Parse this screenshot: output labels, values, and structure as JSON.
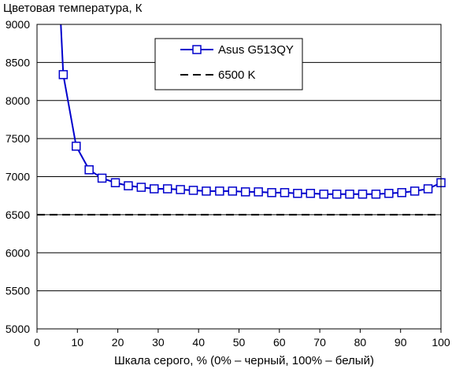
{
  "chart_data": {
    "type": "line",
    "ylabel": "Цветовая температура, К",
    "xlabel": "Шкала серого, % (0% – черный, 100% – белый)",
    "xlim": [
      0,
      100
    ],
    "ylim": [
      5000,
      9000
    ],
    "xticks": [
      0,
      10,
      20,
      30,
      40,
      50,
      60,
      70,
      80,
      90,
      100
    ],
    "yticks": [
      5000,
      5500,
      6000,
      6500,
      7000,
      7500,
      8000,
      8500,
      9000
    ],
    "grid": "horizontal",
    "legend_position": "top-center",
    "series": [
      {
        "name": "Asus G513QY",
        "color": "#0000cc",
        "marker": "square",
        "line_start": {
          "x": 5.9,
          "y": 9000
        },
        "x": [
          6.5,
          9.7,
          12.9,
          16.1,
          19.4,
          22.6,
          25.8,
          29.0,
          32.3,
          35.5,
          38.7,
          41.9,
          45.2,
          48.4,
          51.6,
          54.8,
          58.1,
          61.3,
          64.5,
          67.7,
          71.0,
          74.2,
          77.4,
          80.6,
          83.9,
          87.1,
          90.3,
          93.5,
          96.8,
          100.0
        ],
        "values": [
          8340,
          7400,
          7090,
          6980,
          6920,
          6880,
          6860,
          6840,
          6840,
          6830,
          6820,
          6810,
          6810,
          6810,
          6800,
          6800,
          6790,
          6790,
          6780,
          6780,
          6770,
          6770,
          6770,
          6770,
          6770,
          6780,
          6790,
          6810,
          6840,
          6920
        ]
      },
      {
        "name": "6500 K",
        "color": "#000000",
        "style": "dashed",
        "x": [
          0,
          100
        ],
        "values": [
          6500,
          6500
        ]
      }
    ]
  }
}
